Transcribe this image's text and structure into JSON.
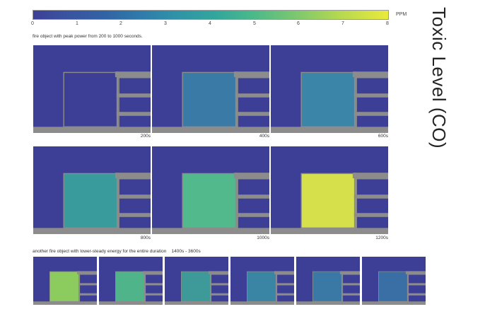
{
  "legend": {
    "ticks": [
      "0",
      "1",
      "2",
      "3",
      "4",
      "5",
      "6",
      "7",
      "8"
    ],
    "unit": "PPM",
    "colors": {
      "low": "#3d3f96",
      "high": "#eaea3c",
      "structure": "#8c8c8c"
    }
  },
  "title": "Toxic Level (CO)",
  "section1": {
    "caption": "fire object with peak power from 200 to 1000 seconds.",
    "panels": [
      {
        "label": "200s",
        "fill": "#3d3f96"
      },
      {
        "label": "400s",
        "fill": "#3a7aa6"
      },
      {
        "label": "600s",
        "fill": "#3b85a8"
      },
      {
        "label": "800s",
        "fill": "#3a9b9c"
      },
      {
        "label": "1000s",
        "fill": "#52b98c"
      },
      {
        "label": "1200s",
        "fill": "#d6e04a"
      }
    ]
  },
  "section2": {
    "caption": "another fire object with lower-steady energy for the entire duration    1400s - 3600s",
    "panels": [
      {
        "fill": "#8ccc5e"
      },
      {
        "fill": "#4fb48a"
      },
      {
        "fill": "#3d9a98"
      },
      {
        "fill": "#3a84a4"
      },
      {
        "fill": "#3a78a6"
      },
      {
        "fill": "#3a6fa5"
      }
    ]
  }
}
